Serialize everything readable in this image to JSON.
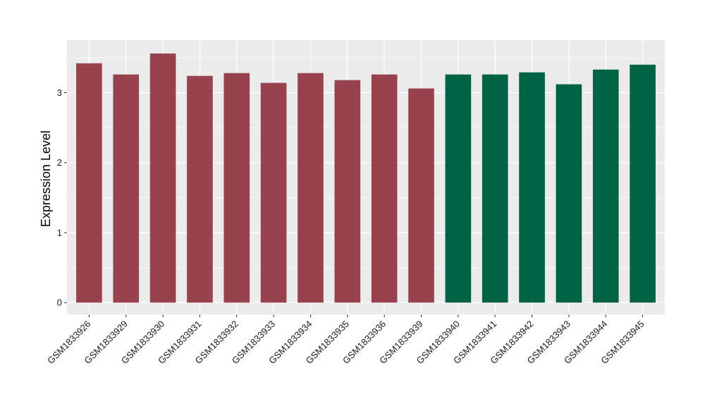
{
  "chart_data": {
    "type": "bar",
    "title": "",
    "xlabel": "",
    "ylabel": "Expression Level",
    "ylim": [
      -0.17,
      3.75
    ],
    "yticks": [
      0,
      1,
      2,
      3
    ],
    "grid": true,
    "categories": [
      "GSM1833926",
      "GSM1833929",
      "GSM1833930",
      "GSM1833931",
      "GSM1833932",
      "GSM1833933",
      "GSM1833934",
      "GSM1833935",
      "GSM1833936",
      "GSM1833939",
      "GSM1833940",
      "GSM1833941",
      "GSM1833942",
      "GSM1833943",
      "GSM1833944",
      "GSM1833945"
    ],
    "values": [
      3.42,
      3.26,
      3.56,
      3.24,
      3.28,
      3.14,
      3.28,
      3.18,
      3.26,
      3.06,
      3.26,
      3.26,
      3.29,
      3.12,
      3.33,
      3.4
    ],
    "groups": [
      "a",
      "a",
      "a",
      "a",
      "a",
      "a",
      "a",
      "a",
      "a",
      "a",
      "b",
      "b",
      "b",
      "b",
      "b",
      "b"
    ],
    "colors": {
      "a": "#99424f",
      "b": "#006344"
    },
    "panel_background": "#ebebeb",
    "gridline_color": "#ffffff"
  }
}
